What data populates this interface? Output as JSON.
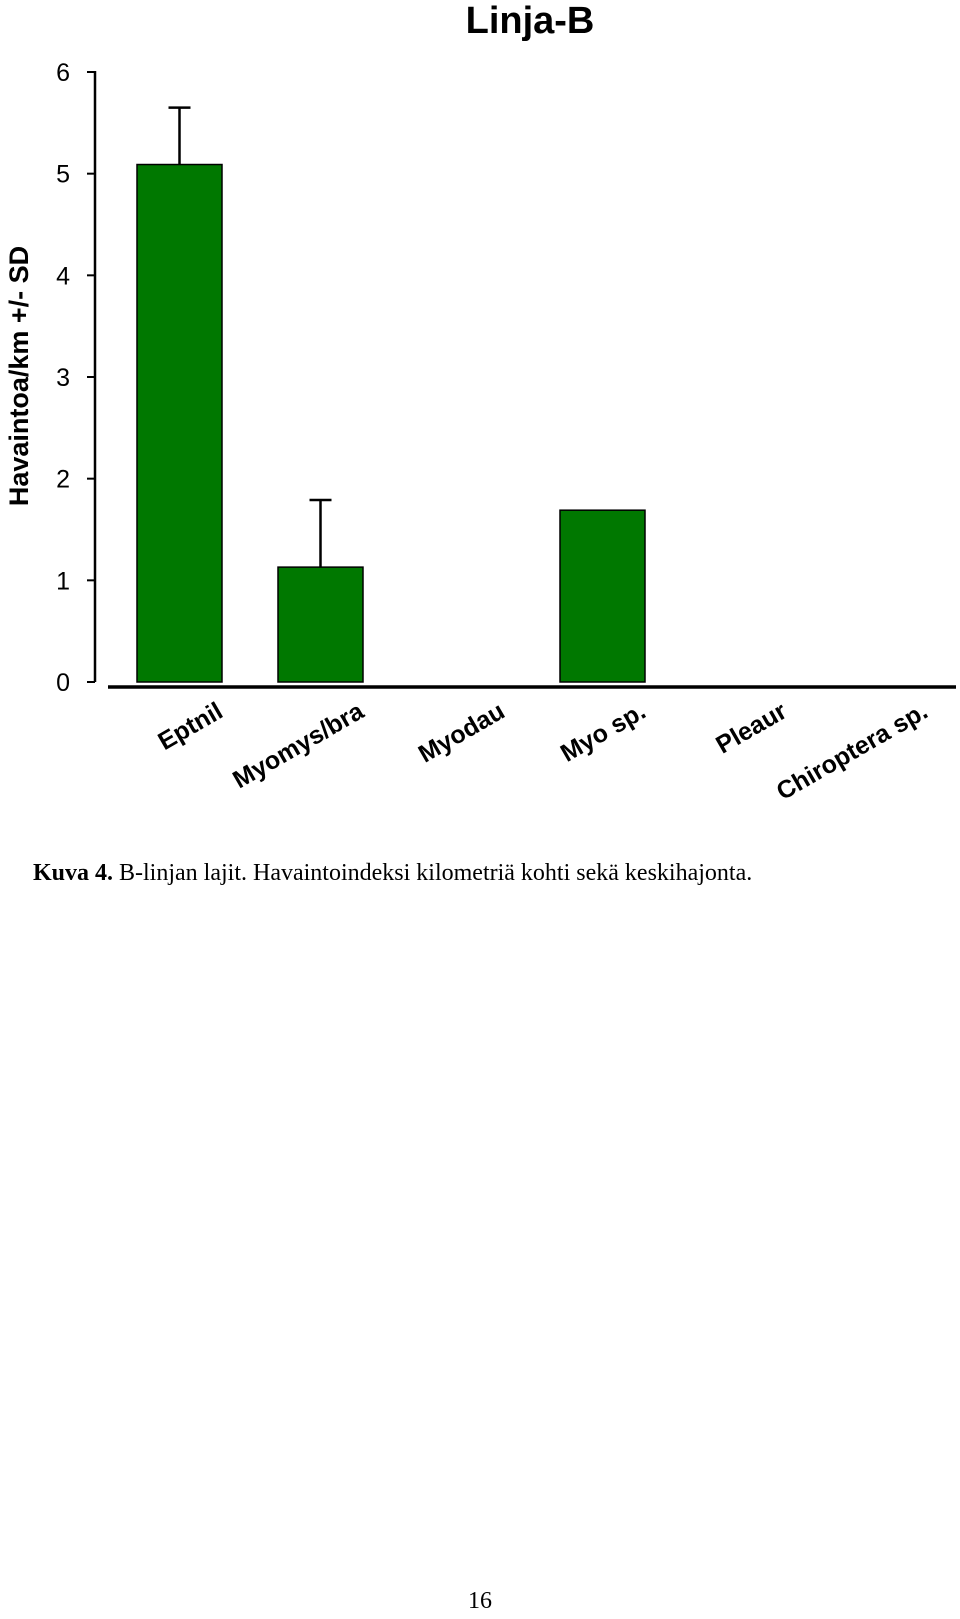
{
  "chart_data": {
    "type": "bar",
    "title": "Linja-B",
    "xlabel": "",
    "ylabel": "Havaintoa/km +/- SD",
    "categories": [
      "Eptnil",
      "Myomys/bra",
      "Myodau",
      "Myo sp.",
      "Pleaur",
      "Chiroptera sp."
    ],
    "values": [
      5.09,
      1.13,
      0,
      1.69,
      0,
      0
    ],
    "sd": [
      0.56,
      0.66,
      null,
      null,
      null,
      null
    ],
    "ylim": [
      0,
      6
    ],
    "yticks": [
      "0",
      "1",
      "2",
      "3",
      "4",
      "5",
      "6"
    ],
    "grid": false,
    "bar_color": "#007800"
  },
  "caption": {
    "label": "Kuva 4.",
    "text": " B-linjan lajit. Havaintoindeksi kilometriä kohti sekä keskihajonta."
  },
  "page_number": "16"
}
